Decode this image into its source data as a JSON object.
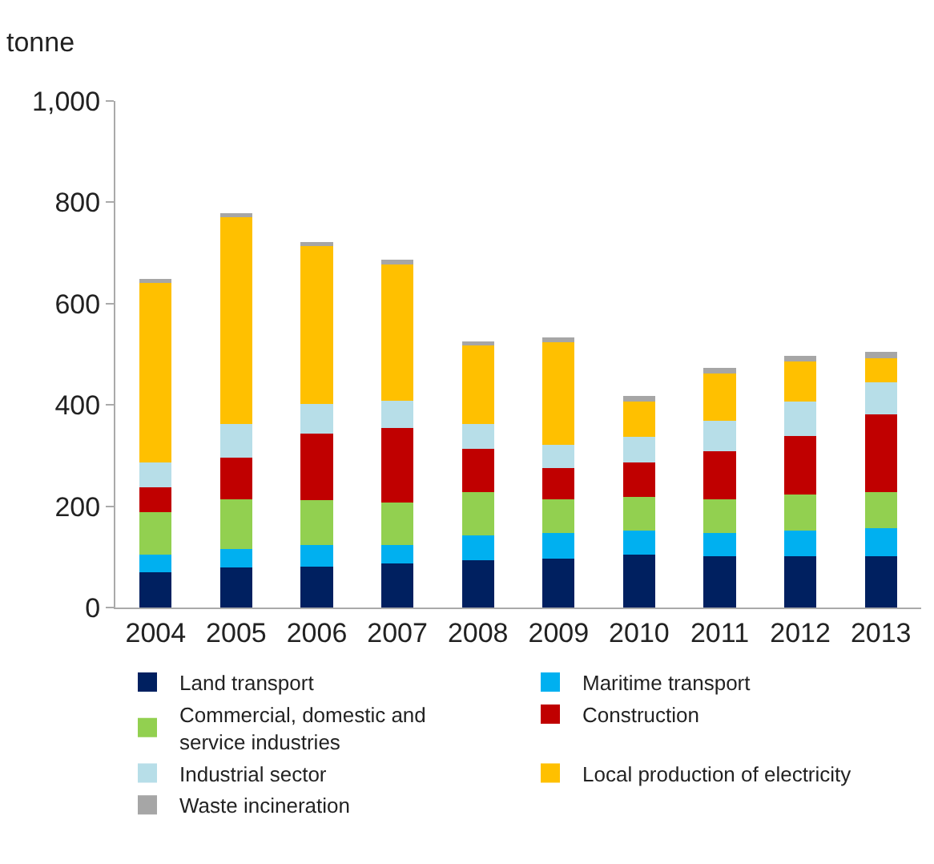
{
  "chart_data": {
    "type": "bar",
    "stacked": true,
    "ylabel": "tonne",
    "categories": [
      "2004",
      "2005",
      "2006",
      "2007",
      "2008",
      "2009",
      "2010",
      "2011",
      "2012",
      "2013"
    ],
    "series": [
      {
        "name": "Land transport",
        "color": "#002060",
        "values": [
          70,
          79,
          81,
          87,
          93,
          97,
          104,
          102,
          102,
          102
        ]
      },
      {
        "name": "Maritime transport",
        "color": "#00b0f0",
        "values": [
          34,
          37,
          42,
          36,
          49,
          50,
          48,
          45,
          50,
          55
        ]
      },
      {
        "name": "Commercial, domestic and service industries",
        "color": "#92d050",
        "values": [
          84,
          97,
          89,
          85,
          86,
          67,
          66,
          67,
          71,
          71
        ]
      },
      {
        "name": "Construction",
        "color": "#c00000",
        "values": [
          49,
          83,
          132,
          146,
          85,
          61,
          68,
          95,
          116,
          153
        ]
      },
      {
        "name": "Industrial sector",
        "color": "#b7dee8",
        "values": [
          49,
          66,
          58,
          55,
          49,
          47,
          51,
          60,
          68,
          63
        ]
      },
      {
        "name": "Local production of electricity",
        "color": "#ffc000",
        "values": [
          355,
          409,
          311,
          269,
          156,
          201,
          70,
          93,
          79,
          48
        ]
      },
      {
        "name": "Waste incineration",
        "color": "#a6a6a6",
        "values": [
          8,
          8,
          8,
          9,
          8,
          10,
          11,
          11,
          11,
          12
        ]
      }
    ],
    "ylim": [
      0,
      1000
    ],
    "yticks": [
      0,
      200,
      400,
      600,
      800,
      {
        "value": 1000,
        "label": "1,000"
      }
    ],
    "legend": "bottom"
  }
}
